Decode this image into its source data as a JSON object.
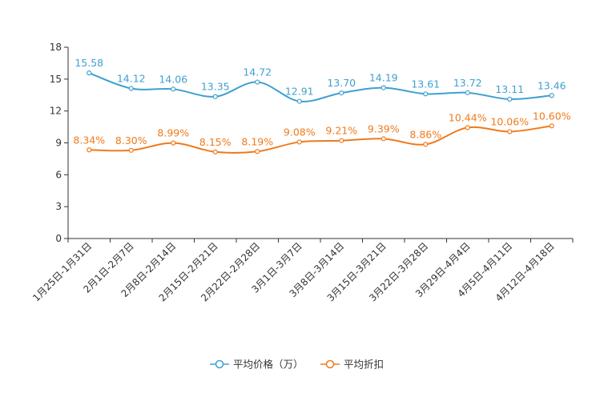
{
  "chart_data": {
    "type": "line",
    "title": "",
    "xlabel": "",
    "ylabel": "",
    "ylim": [
      0,
      18
    ],
    "yticks": [
      0,
      3,
      6,
      9,
      12,
      15,
      18
    ],
    "grid": false,
    "legend_position": "bottom-center",
    "categories": [
      "1月25日-1月31日",
      "2月1日-2月7日",
      "2月8日-2月14日",
      "2月15日-2月21日",
      "2月22日-2月28日",
      "3月1日-3月7日",
      "3月8日-3月14日",
      "3月15日-3月21日",
      "3月22日-3月28日",
      "3月29日-4月4日",
      "4月5日-4月11日",
      "4月12日-4月18日"
    ],
    "series": [
      {
        "name": "平均价格（万）",
        "color": "#3fa0d0",
        "values": [
          15.58,
          14.12,
          14.06,
          13.35,
          14.72,
          12.91,
          13.7,
          14.19,
          13.61,
          13.72,
          13.11,
          13.46
        ],
        "labels": [
          "15.58",
          "14.12",
          "14.06",
          "13.35",
          "14.72",
          "12.91",
          "13.70",
          "14.19",
          "13.61",
          "13.72",
          "13.11",
          "13.46"
        ]
      },
      {
        "name": "平均折扣",
        "color": "#f07a1a",
        "values": [
          8.34,
          8.3,
          8.99,
          8.15,
          8.19,
          9.08,
          9.21,
          9.39,
          8.86,
          10.44,
          10.06,
          10.6
        ],
        "labels": [
          "8.34%",
          "8.30%",
          "8.99%",
          "8.15%",
          "8.19%",
          "9.08%",
          "9.21%",
          "9.39%",
          "8.86%",
          "10.44%",
          "10.06%",
          "10.60%"
        ]
      }
    ]
  }
}
